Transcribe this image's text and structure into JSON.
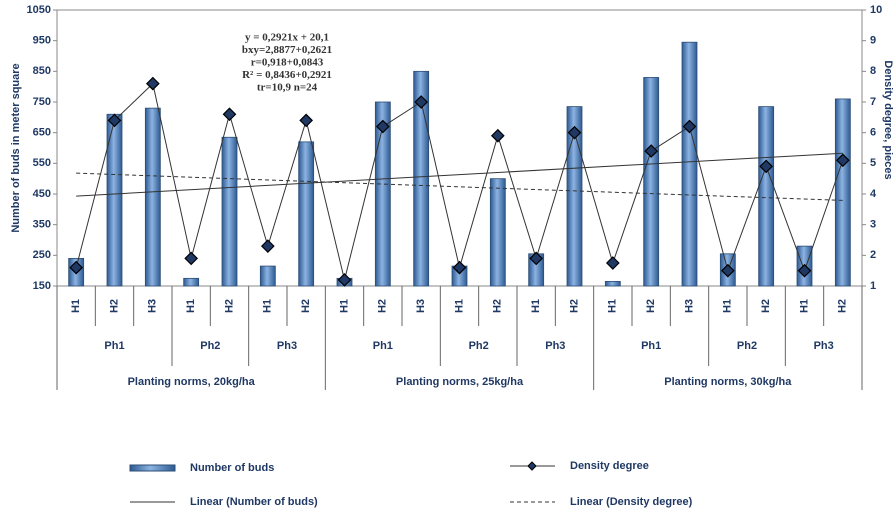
{
  "chart_data": {
    "type": "bar_line",
    "annotation": [
      "y = 0,2921x + 20,1",
      "bxy=2,8877+0,2621",
      "r=0,918+0,0843",
      "R² = 0,8436+0,2921",
      "tr=10,9 n=24"
    ],
    "ylabel": "Number of buds in meter square",
    "y2label": "Density degree, pieces",
    "groups": [
      {
        "name": "Planting norms, 20kg/ha",
        "subgroups": [
          {
            "name": "Ph1",
            "categories": [
              "H1",
              "H2",
              "H3"
            ]
          },
          {
            "name": "Ph2",
            "categories": [
              "H1",
              "H2"
            ]
          },
          {
            "name": "Ph3",
            "categories": [
              "H1",
              "H2"
            ]
          }
        ]
      },
      {
        "name": "Planting norms, 25kg/ha",
        "subgroups": [
          {
            "name": "Ph1",
            "categories": [
              "H1",
              "H2",
              "H3"
            ]
          },
          {
            "name": "Ph2",
            "categories": [
              "H1",
              "H2"
            ]
          },
          {
            "name": "Ph3",
            "categories": [
              "H1",
              "H2"
            ]
          }
        ]
      },
      {
        "name": "Planting norms, 30kg/ha",
        "subgroups": [
          {
            "name": "Ph1",
            "categories": [
              "H1",
              "H2",
              "H3"
            ]
          },
          {
            "name": "Ph2",
            "categories": [
              "H1",
              "H2"
            ]
          },
          {
            "name": "Ph3",
            "categories": [
              "H1",
              "H2"
            ]
          }
        ]
      }
    ],
    "series": [
      {
        "name": "Number of buds",
        "type": "bar",
        "color": "#4f81bd",
        "trend_label": "Linear (Number of buds)",
        "values": [
          240,
          710,
          730,
          175,
          635,
          215,
          620,
          175,
          750,
          850,
          215,
          500,
          255,
          735,
          165,
          830,
          945,
          255,
          735,
          280,
          760
        ]
      },
      {
        "name": "Density degree",
        "type": "line",
        "axis": "y2",
        "color": "#333333",
        "trend_label": "Linear (Density degree)",
        "values": [
          1.6,
          6.4,
          7.6,
          1.9,
          6.6,
          2.3,
          6.4,
          1.2,
          6.2,
          7.0,
          1.6,
          5.9,
          1.9,
          6.0,
          1.75,
          5.4,
          6.2,
          1.5,
          4.9,
          1.5,
          5.1
        ]
      }
    ],
    "ylim": [
      150,
      1050
    ],
    "yticks": [
      150,
      250,
      350,
      450,
      550,
      650,
      750,
      850,
      950,
      1050
    ],
    "y2lim": [
      1,
      10
    ],
    "y2ticks": [
      1,
      2,
      3,
      4,
      5,
      6,
      7,
      8,
      9,
      10
    ]
  }
}
